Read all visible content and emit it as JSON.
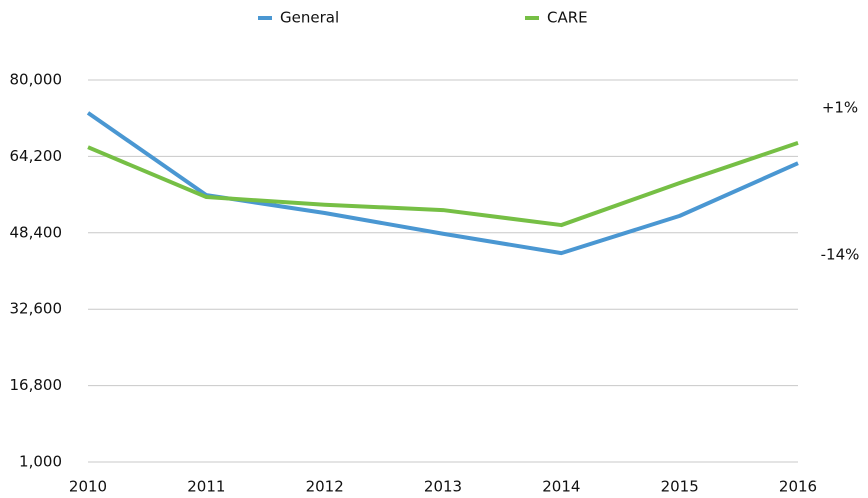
{
  "chart_data": {
    "type": "line",
    "categories": [
      "2010",
      "2011",
      "2012",
      "2013",
      "2014",
      "2015",
      "2016"
    ],
    "series": [
      {
        "name": "General",
        "color": "#4a97d2",
        "values": [
          73200,
          56200,
          52500,
          48200,
          44200,
          51900,
          62800
        ]
      },
      {
        "name": "CARE",
        "color": "#76bf45",
        "values": [
          66100,
          55800,
          54200,
          53100,
          50000,
          58700,
          67000
        ]
      }
    ],
    "ylim": [
      1000,
      80000
    ],
    "yticks": [
      {
        "value": 1000,
        "label": "1,000"
      },
      {
        "value": 16800,
        "label": "16,800"
      },
      {
        "value": 32600,
        "label": "32,600"
      },
      {
        "value": 48400,
        "label": "48,400"
      },
      {
        "value": 64200,
        "label": "64,200"
      },
      {
        "value": 80000,
        "label": "80,000"
      }
    ],
    "grid": true,
    "legend": "top",
    "annotations": [
      "+1%",
      "-14%"
    ]
  }
}
